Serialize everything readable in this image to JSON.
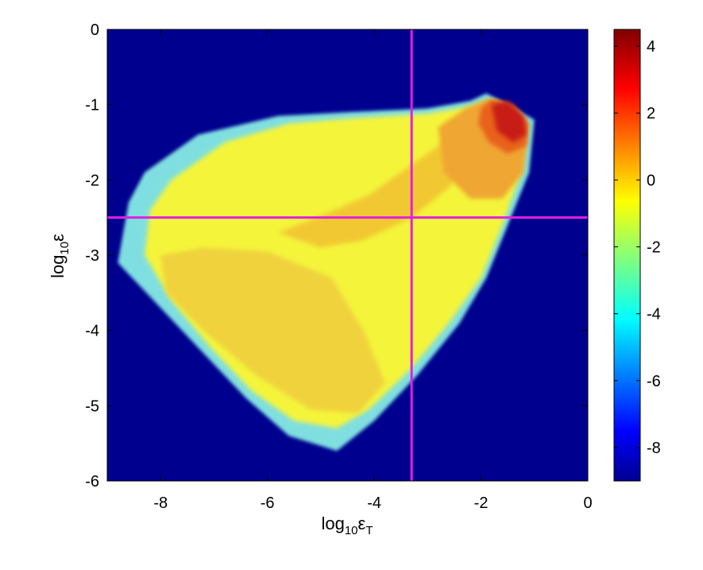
{
  "chart_data": {
    "type": "heatmap",
    "title": "",
    "xlabel": "log10εT",
    "xlabel_parts": {
      "base": "log",
      "sub": "10",
      "symbol": "ε",
      "symbol_sub": "T"
    },
    "ylabel": "log10ε",
    "ylabel_parts": {
      "base": "log",
      "sub": "10",
      "symbol": "ε"
    },
    "xlim": [
      -9,
      0
    ],
    "ylim": [
      -6,
      0
    ],
    "x_ticks": [
      -8,
      -6,
      -4,
      -2,
      0
    ],
    "x_tick_labels": [
      "-8",
      "-6",
      "-4",
      "-2",
      "0"
    ],
    "y_ticks": [
      0,
      -1,
      -2,
      -3,
      -4,
      -5,
      -6
    ],
    "y_tick_labels": [
      "0",
      "-1",
      "-2",
      "-3",
      "-4",
      "-5",
      "-6"
    ],
    "colorbar": {
      "range": [
        -9,
        4.5
      ],
      "ticks": [
        4,
        2,
        0,
        -2,
        -4,
        -6,
        -8
      ],
      "tick_labels": [
        "4",
        "2",
        "0",
        "-2",
        "-4",
        "-6",
        "-8"
      ],
      "colormap": "jet"
    },
    "background_value": -9,
    "colors": {
      "background": "#00008f",
      "reference_line": "#e020e0"
    },
    "reference_lines": [
      {
        "orientation": "vertical",
        "x": -3.3
      },
      {
        "orientation": "horizontal",
        "y": -2.5
      }
    ],
    "region_outline": [
      [
        -8.6,
        -2.3
      ],
      [
        -8.3,
        -1.9
      ],
      [
        -7.3,
        -1.4
      ],
      [
        -5.8,
        -1.15
      ],
      [
        -4.5,
        -1.1
      ],
      [
        -3.0,
        -1.05
      ],
      [
        -2.2,
        -0.95
      ],
      [
        -1.9,
        -0.85
      ],
      [
        -1.5,
        -1.0
      ],
      [
        -1.0,
        -1.2
      ],
      [
        -1.1,
        -1.9
      ],
      [
        -1.5,
        -2.6
      ],
      [
        -1.9,
        -3.3
      ],
      [
        -2.4,
        -3.9
      ],
      [
        -3.2,
        -4.6
      ],
      [
        -4.0,
        -5.2
      ],
      [
        -4.7,
        -5.6
      ],
      [
        -5.6,
        -5.4
      ],
      [
        -6.4,
        -4.9
      ],
      [
        -7.2,
        -4.3
      ],
      [
        -8.0,
        -3.7
      ],
      [
        -8.8,
        -3.1
      ]
    ],
    "regions": [
      {
        "name": "outer-fringe",
        "value": -3.5,
        "color": "#7fdfe0",
        "polygon": [
          [
            -8.6,
            -2.3
          ],
          [
            -8.3,
            -1.9
          ],
          [
            -7.3,
            -1.4
          ],
          [
            -5.8,
            -1.15
          ],
          [
            -4.5,
            -1.1
          ],
          [
            -3.0,
            -1.05
          ],
          [
            -2.2,
            -0.95
          ],
          [
            -1.9,
            -0.85
          ],
          [
            -1.5,
            -1.0
          ],
          [
            -1.0,
            -1.2
          ],
          [
            -1.1,
            -1.9
          ],
          [
            -1.5,
            -2.6
          ],
          [
            -1.9,
            -3.3
          ],
          [
            -2.4,
            -3.9
          ],
          [
            -3.2,
            -4.6
          ],
          [
            -4.0,
            -5.2
          ],
          [
            -4.7,
            -5.6
          ],
          [
            -5.6,
            -5.4
          ],
          [
            -6.4,
            -4.9
          ],
          [
            -7.2,
            -4.3
          ],
          [
            -8.0,
            -3.7
          ],
          [
            -8.8,
            -3.1
          ]
        ]
      },
      {
        "name": "main-body",
        "value": -1.2,
        "color": "#f4f43a",
        "polygon": [
          [
            -8.2,
            -2.4
          ],
          [
            -7.8,
            -2.0
          ],
          [
            -6.8,
            -1.5
          ],
          [
            -5.6,
            -1.25
          ],
          [
            -4.4,
            -1.18
          ],
          [
            -3.0,
            -1.12
          ],
          [
            -2.2,
            -1.02
          ],
          [
            -1.8,
            -0.93
          ],
          [
            -1.3,
            -1.1
          ],
          [
            -1.15,
            -1.3
          ],
          [
            -1.25,
            -1.9
          ],
          [
            -1.6,
            -2.6
          ],
          [
            -2.0,
            -3.3
          ],
          [
            -2.6,
            -3.9
          ],
          [
            -3.3,
            -4.5
          ],
          [
            -4.1,
            -5.05
          ],
          [
            -4.7,
            -5.3
          ],
          [
            -5.5,
            -5.2
          ],
          [
            -6.3,
            -4.8
          ],
          [
            -7.1,
            -4.2
          ],
          [
            -7.8,
            -3.6
          ],
          [
            -8.3,
            -3.0
          ]
        ]
      },
      {
        "name": "lower-left-band",
        "value": -0.5,
        "color": "#f0d23c",
        "polygon": [
          [
            -8.0,
            -3.0
          ],
          [
            -7.2,
            -2.9
          ],
          [
            -6.0,
            -2.95
          ],
          [
            -4.8,
            -3.3
          ],
          [
            -4.2,
            -4.0
          ],
          [
            -3.8,
            -4.7
          ],
          [
            -4.3,
            -5.1
          ],
          [
            -5.2,
            -5.05
          ],
          [
            -6.2,
            -4.6
          ],
          [
            -7.2,
            -4.0
          ],
          [
            -7.9,
            -3.5
          ]
        ]
      },
      {
        "name": "center-band",
        "value": 0,
        "color": "#f2c832",
        "polygon": [
          [
            -5.8,
            -2.7
          ],
          [
            -5.0,
            -2.9
          ],
          [
            -4.2,
            -2.8
          ],
          [
            -3.3,
            -2.5
          ],
          [
            -2.6,
            -2.1
          ],
          [
            -2.1,
            -1.6
          ],
          [
            -2.0,
            -1.3
          ],
          [
            -2.6,
            -1.45
          ],
          [
            -3.3,
            -1.8
          ],
          [
            -4.1,
            -2.2
          ],
          [
            -4.9,
            -2.45
          ]
        ]
      },
      {
        "name": "upper-right-lobe",
        "value": 0.8,
        "color": "#f0a632",
        "polygon": [
          [
            -2.8,
            -1.3
          ],
          [
            -2.3,
            -1.05
          ],
          [
            -1.9,
            -0.93
          ],
          [
            -1.4,
            -1.05
          ],
          [
            -1.1,
            -1.25
          ],
          [
            -1.2,
            -1.9
          ],
          [
            -1.6,
            -2.25
          ],
          [
            -2.2,
            -2.25
          ],
          [
            -2.7,
            -1.9
          ]
        ]
      },
      {
        "name": "peak-outer",
        "value": 2,
        "color": "#e8621e",
        "polygon": [
          [
            -2.0,
            -1.05
          ],
          [
            -1.8,
            -0.92
          ],
          [
            -1.4,
            -1.0
          ],
          [
            -1.12,
            -1.25
          ],
          [
            -1.15,
            -1.55
          ],
          [
            -1.5,
            -1.65
          ],
          [
            -1.85,
            -1.5
          ],
          [
            -2.05,
            -1.25
          ]
        ]
      },
      {
        "name": "peak-core",
        "value": 3.2,
        "color": "#c81a14",
        "polygon": [
          [
            -1.8,
            -1.0
          ],
          [
            -1.5,
            -0.95
          ],
          [
            -1.2,
            -1.15
          ],
          [
            -1.15,
            -1.4
          ],
          [
            -1.4,
            -1.5
          ],
          [
            -1.7,
            -1.35
          ]
        ]
      }
    ]
  }
}
